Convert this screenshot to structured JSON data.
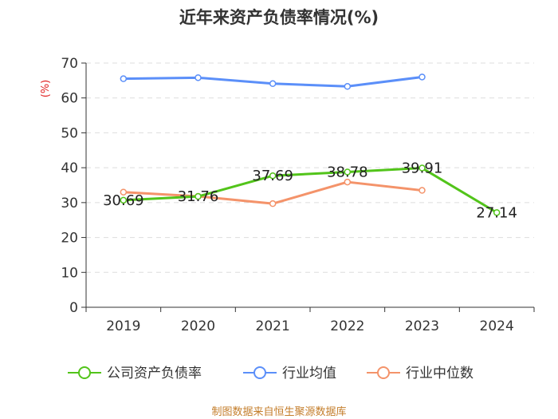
{
  "chart_data": {
    "type": "line",
    "title": "近年来资产负债率情况(%)",
    "ylabel": "(%)",
    "categories": [
      "2019",
      "2020",
      "2021",
      "2022",
      "2023",
      "2024"
    ],
    "ylim": [
      0,
      70
    ],
    "yticks": [
      0,
      10,
      20,
      30,
      40,
      50,
      60,
      70
    ],
    "series": [
      {
        "name": "公司资产负债率",
        "color": "#52c41a",
        "values": [
          30.69,
          31.76,
          37.69,
          38.78,
          39.91,
          27.14
        ],
        "labels": [
          "30.69",
          "31.76",
          "37.69",
          "38.78",
          "39.91",
          "27.14"
        ]
      },
      {
        "name": "行业均值",
        "color": "#5b8ff9",
        "values": [
          65.5,
          65.8,
          64.1,
          63.3,
          66.0,
          null
        ]
      },
      {
        "name": "行业中位数",
        "color": "#f4936a",
        "values": [
          33.0,
          31.8,
          29.7,
          35.9,
          33.5,
          null
        ]
      }
    ]
  },
  "source": "制图数据来自恒生聚源数据库"
}
